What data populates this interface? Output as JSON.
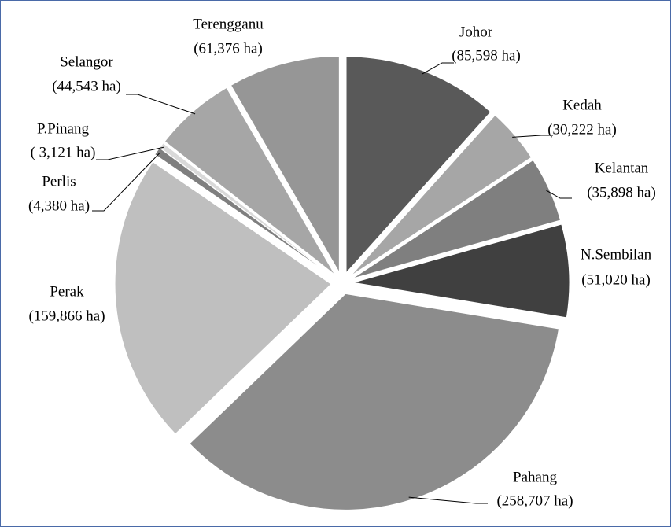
{
  "chart_data": {
    "type": "pie",
    "categories": [
      "Johor",
      "Kedah",
      "Kelantan",
      "N.Sembilan",
      "Pahang",
      "Perak",
      "Perlis",
      "P.Pinang",
      "Selangor",
      "Terengganu"
    ],
    "values": [
      85598,
      30222,
      35898,
      51020,
      258707,
      159866,
      4380,
      3121,
      44543,
      61376
    ],
    "value_labels": [
      "(85,598 ha)",
      "(30,222 ha)",
      "(35,898 ha)",
      "(51,020 ha)",
      "(258,707 ha)",
      "(159,866 ha)",
      "(4,380 ha)",
      "( 3,121 ha)",
      "(44,543 ha)",
      "(61,376 ha)"
    ],
    "colors": [
      "#595959",
      "#a6a6a6",
      "#7f7f7f",
      "#404040",
      "#8c8c8c",
      "#bfbfbf",
      "#7f7f7f",
      "#d9d9d9",
      "#a6a6a6",
      "#969696"
    ]
  }
}
